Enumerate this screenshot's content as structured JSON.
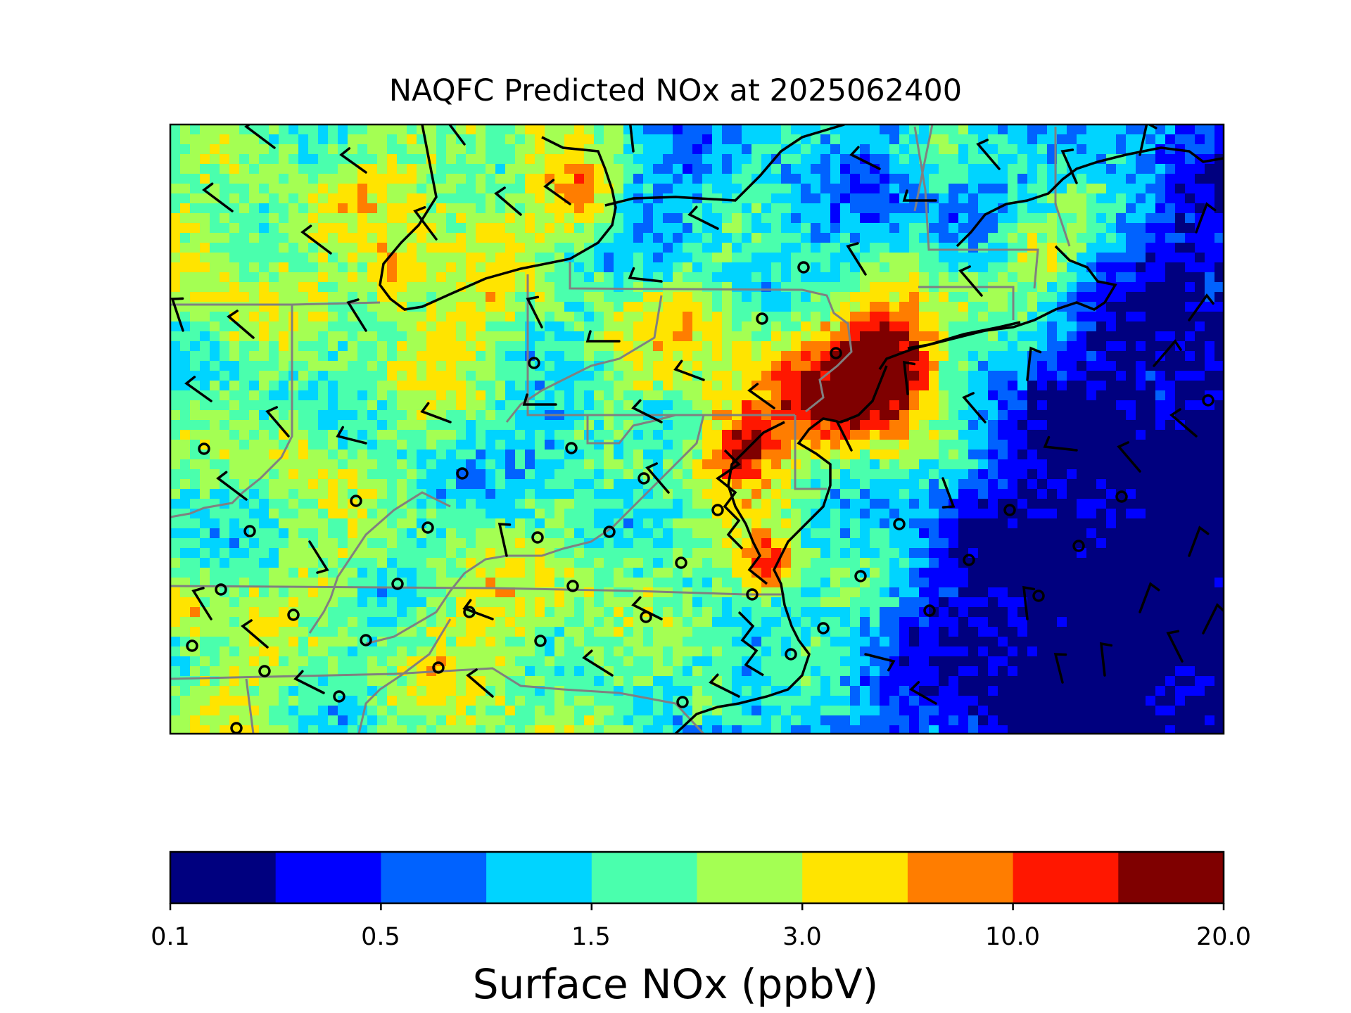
{
  "title": "NAQFC Predicted NOx at 2025062400",
  "colorbar": {
    "label": "Surface NOx (ppbV)",
    "tick_labels": [
      "0.1",
      "0.5",
      "1.5",
      "3.0",
      "10.0",
      "20.0"
    ],
    "colors": [
      "#00007f",
      "#0000ff",
      "#0062ff",
      "#00d4ff",
      "#4affad",
      "#a4ff53",
      "#ffe400",
      "#ff7d00",
      "#ff1700",
      "#7f0000"
    ]
  },
  "map": {
    "variable": "Surface NOx",
    "units": "ppbV",
    "valid_time": "2025062400",
    "overlays": [
      "gridded-concentration",
      "state-borders",
      "coastline",
      "wind-barbs",
      "station-markers"
    ]
  }
}
